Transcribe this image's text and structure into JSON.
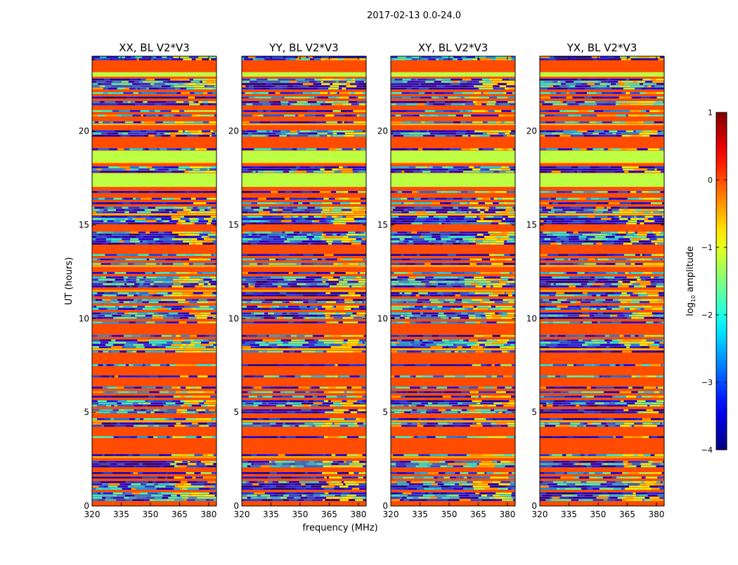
{
  "chart_data": {
    "type": "heatmap",
    "suptitle": "2017-02-13 0.0-24.0",
    "xlabel": "frequency (MHz)",
    "ylabel": "UT (hours)",
    "xlim": [
      320,
      384
    ],
    "ylim": [
      0,
      24
    ],
    "xticks": [
      "320",
      "335",
      "350",
      "365",
      "380"
    ],
    "xtick_values": [
      320,
      335,
      350,
      365,
      380
    ],
    "yticks": [
      "0",
      "5",
      "10",
      "15",
      "20"
    ],
    "ytick_values": [
      0,
      5,
      10,
      15,
      20
    ],
    "colormap": "jet",
    "colorbar": {
      "label_main": "log",
      "label_sub": "10",
      "label_rest": " amplitude",
      "range": [
        -4,
        1
      ],
      "ticks": [
        "1",
        "0",
        "−1",
        "−2",
        "−3",
        "−4"
      ],
      "tick_values": [
        1,
        0,
        -1,
        -2,
        -3,
        -4
      ]
    },
    "panels": [
      {
        "title": "XX, BL V2*V3",
        "dark_rows": 0.25
      },
      {
        "title": "YY, BL V2*V3",
        "dark_rows": 0.45
      },
      {
        "title": "XY, BL V2*V3",
        "dark_rows": 0.25
      },
      {
        "title": "YX, BL V2*V3",
        "dark_rows": 0.45
      }
    ],
    "background_log_amplitude": 0.0,
    "uniform_bands": [
      {
        "from": 22.9,
        "to": 23.2,
        "log_amplitude": -1.2
      },
      {
        "from": 23.2,
        "to": 23.6,
        "log_amplitude": 0.0
      },
      {
        "from": 18.4,
        "to": 19.0,
        "log_amplitude": -1.2
      },
      {
        "from": 17.1,
        "to": 17.8,
        "log_amplitude": -1.2
      },
      {
        "from": 9.3,
        "to": 9.7,
        "log_amplitude": 0.0
      },
      {
        "from": 3.1,
        "to": 3.5,
        "log_amplitude": 0.0
      },
      {
        "from": 0.0,
        "to": 0.3,
        "log_amplitude": 0.0
      }
    ],
    "rfi_band_mhz": [
      360,
      381
    ]
  }
}
